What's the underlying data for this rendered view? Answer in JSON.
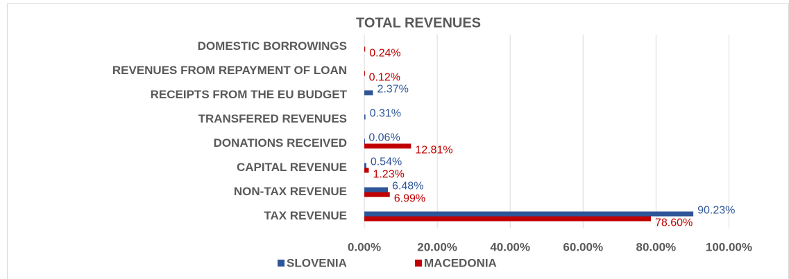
{
  "chart_data": {
    "type": "bar",
    "orientation": "horizontal",
    "title": "TOTAL REVENUES",
    "categories": [
      "TAX REVENUE",
      "NON-TAX REVENUE",
      "CAPITAL REVENUE",
      "DONATIONS RECEIVED",
      "TRANSFERED REVENUES",
      "RECEIPTS FROM THE EU BUDGET",
      "REVENUES FROM REPAYMENT OF LOAN",
      "DOMESTIC BORROWINGS"
    ],
    "series": [
      {
        "name": "SLOVENIA",
        "color": "#2e5597",
        "values": [
          90.23,
          6.48,
          0.54,
          0.06,
          0.31,
          2.37,
          null,
          null
        ],
        "value_labels": [
          "90.23%",
          "6.48%",
          "0.54%",
          "0.06%",
          "0.31%",
          "2.37%",
          null,
          null
        ]
      },
      {
        "name": "MACEDONIA",
        "color": "#c00000",
        "values": [
          78.6,
          6.99,
          1.23,
          12.81,
          null,
          null,
          0.12,
          0.24
        ],
        "value_labels": [
          "78.60%",
          "6.99%",
          "1.23%",
          "12.81%",
          null,
          null,
          "0.12%",
          "0.24%"
        ]
      }
    ],
    "xlim": [
      0,
      110
    ],
    "xticks": [
      {
        "value": 0,
        "label": "0.00%"
      },
      {
        "value": 20,
        "label": "20.00%"
      },
      {
        "value": 40,
        "label": "40.00%"
      },
      {
        "value": 60,
        "label": "60.00%"
      },
      {
        "value": 80,
        "label": "80.00%"
      },
      {
        "value": 100,
        "label": "100.00%"
      }
    ],
    "grid": true,
    "legend": "bottom"
  }
}
